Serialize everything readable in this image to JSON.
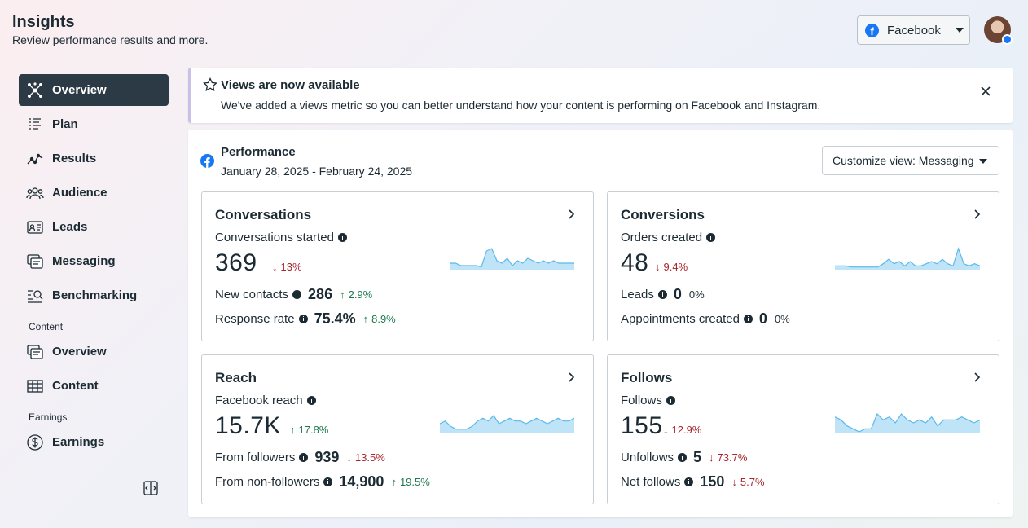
{
  "header": {
    "title": "Insights",
    "subtitle": "Review performance results and more."
  },
  "account_select": {
    "label": "Facebook"
  },
  "sidebar": {
    "items": [
      {
        "label": "Overview",
        "icon": "overview-icon",
        "active": true
      },
      {
        "label": "Plan",
        "icon": "plan-icon"
      },
      {
        "label": "Results",
        "icon": "results-icon"
      },
      {
        "label": "Audience",
        "icon": "audience-icon"
      },
      {
        "label": "Leads",
        "icon": "leads-icon"
      },
      {
        "label": "Messaging",
        "icon": "messaging-icon"
      },
      {
        "label": "Benchmarking",
        "icon": "benchmarking-icon"
      }
    ],
    "content_section": {
      "label": "Content",
      "items": [
        {
          "label": "Overview"
        },
        {
          "label": "Content"
        }
      ]
    },
    "earnings_section": {
      "label": "Earnings",
      "items": [
        {
          "label": "Earnings"
        }
      ]
    }
  },
  "banner": {
    "title": "Views are now available",
    "description": "We've added a views metric so you can better understand how your content is performing on Facebook and Instagram."
  },
  "performance": {
    "title": "Performance",
    "dates": "January 28, 2025 - February 24, 2025",
    "customize_label": "Customize view: Messaging",
    "cards": {
      "conversations": {
        "title": "Conversations",
        "metric_label": "Conversations started",
        "value": "369",
        "delta": "13%",
        "delta_dir": "down",
        "rows": [
          {
            "label": "New contacts",
            "value": "286",
            "delta": "2.9%",
            "dir": "up"
          },
          {
            "label": "Response rate",
            "value": "75.4%",
            "delta": "8.9%",
            "dir": "up"
          }
        ],
        "spark": [
          2,
          2,
          1,
          1,
          1,
          1,
          0.5,
          7,
          8,
          3,
          2,
          4,
          1,
          3,
          2,
          4,
          3,
          2,
          3,
          2,
          3,
          2,
          2,
          2,
          2
        ]
      },
      "conversions": {
        "title": "Conversions",
        "metric_label": "Orders created",
        "value": "48",
        "delta": "9.4%",
        "delta_dir": "down",
        "rows": [
          {
            "label": "Leads",
            "value": "0",
            "delta": "0%",
            "dir": "none"
          },
          {
            "label": "Appointments created",
            "value": "0",
            "delta": "0%",
            "dir": "none"
          }
        ],
        "spark": [
          1,
          1,
          1,
          0.5,
          0.5,
          0.5,
          0.5,
          0.5,
          0.5,
          2,
          4,
          2,
          3,
          1,
          3,
          1,
          1,
          2,
          3,
          2,
          4,
          2,
          1,
          9,
          2,
          1,
          2,
          1
        ]
      },
      "reach": {
        "title": "Reach",
        "metric_label": "Facebook reach",
        "value": "15.7K",
        "delta": "17.8%",
        "delta_dir": "up",
        "rows": [
          {
            "label": "From followers",
            "value": "939",
            "delta": "13.5%",
            "dir": "down"
          },
          {
            "label": "From non-followers",
            "value": "14,900",
            "delta": "19.5%",
            "dir": "up"
          }
        ],
        "spark": [
          3,
          4,
          2,
          1,
          1,
          1,
          2,
          4,
          5,
          4,
          6,
          3,
          4,
          5,
          4,
          4,
          3,
          4,
          5,
          4,
          3,
          4,
          5,
          4,
          4,
          5
        ]
      },
      "follows": {
        "title": "Follows",
        "metric_label": "Follows",
        "value": "155",
        "delta": "12.9%",
        "delta_dir": "down",
        "rows": [
          {
            "label": "Unfollows",
            "value": "5",
            "delta": "73.7%",
            "dir": "down"
          },
          {
            "label": "Net follows",
            "value": "150",
            "delta": "5.7%",
            "dir": "down"
          }
        ],
        "spark": [
          5,
          4,
          2,
          1,
          0,
          1,
          1,
          6,
          4,
          5,
          3,
          6,
          4,
          3,
          4,
          3,
          5,
          2,
          4,
          4,
          4,
          5,
          4,
          3,
          4
        ]
      }
    }
  },
  "colors": {
    "accent": "#1877f2",
    "active_nav": "#2b3a44",
    "spark_fill": "#bfe3f7",
    "spark_line": "#5cb9ea",
    "down": "#a8262d",
    "up": "#1d7a4e"
  }
}
